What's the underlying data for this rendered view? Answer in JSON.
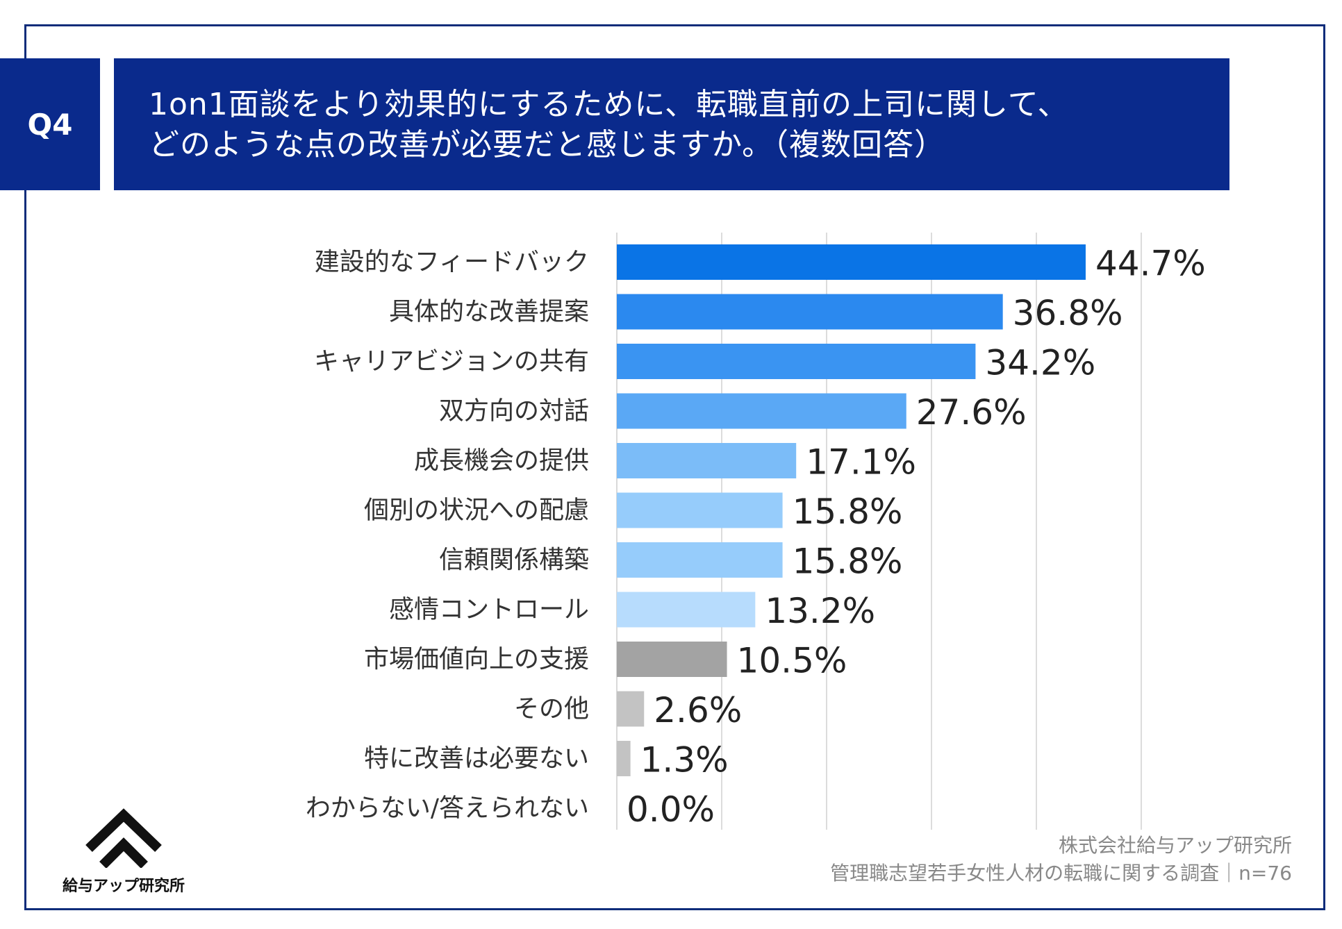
{
  "question": {
    "badge": "Q4",
    "line1": "1on1面談をより効果的にするために、転職直前の上司に関して、",
    "line2": "どのような点の改善が必要だと感じますか。（複数回答）"
  },
  "chart_data": {
    "type": "bar",
    "orientation": "horizontal",
    "categories": [
      "建設的なフィードバック",
      "具体的な改善提案",
      "キャリアビジョンの共有",
      "双方向の対話",
      "成長機会の提供",
      "個別の状況への配慮",
      "信頼関係構築",
      "感情コントロール",
      "市場価値向上の支援",
      "その他",
      "特に改善は必要ない",
      "わからない/答えられない"
    ],
    "values": [
      44.7,
      36.8,
      34.2,
      27.6,
      17.1,
      15.8,
      15.8,
      13.2,
      10.5,
      2.6,
      1.3,
      0.0
    ],
    "value_labels": [
      "44.7%",
      "36.8%",
      "34.2%",
      "27.6%",
      "17.1%",
      "15.8%",
      "15.8%",
      "13.2%",
      "10.5%",
      "2.6%",
      "1.3%",
      "0.0%"
    ],
    "colors": [
      "#0a74e6",
      "#2b89ef",
      "#3a94f2",
      "#5aa8f5",
      "#7bbcf8",
      "#96ccfb",
      "#96ccfb",
      "#b7dcfd",
      "#a3a3a3",
      "#c3c3c3",
      "#c3c3c3",
      "#c3c3c3"
    ],
    "xlim": [
      0,
      50
    ],
    "grid": true,
    "grid_values": [
      10,
      20,
      30,
      40,
      50
    ]
  },
  "footer": {
    "company": "株式会社給与アップ研究所",
    "survey": "管理職志望若手女性人材の転職に関する調査｜n=76"
  },
  "logo": {
    "text": "給与アップ研究所"
  }
}
